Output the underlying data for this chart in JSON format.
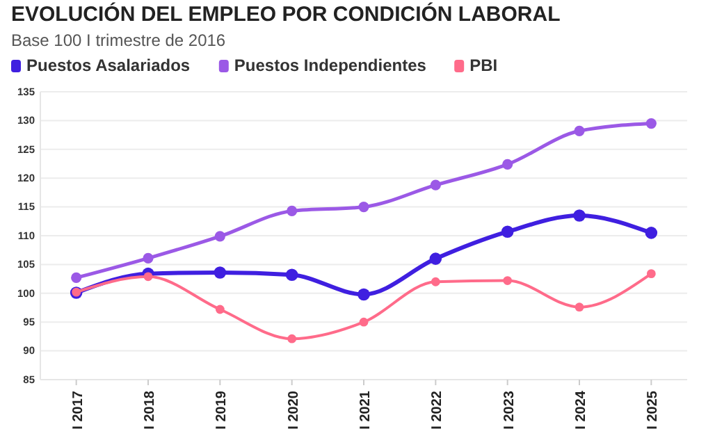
{
  "chart_data": {
    "type": "line",
    "title": "EVOLUCIÓN DEL EMPLEO POR CONDICIÓN LABORAL",
    "subtitle": "Base 100 I trimestre de 2016",
    "categories": [
      "I 2017",
      "I 2018",
      "I 2019",
      "I 2020",
      "I 2021",
      "I 2022",
      "I 2023",
      "I 2024",
      "I 2025"
    ],
    "series": [
      {
        "name": "Puestos Asalariados",
        "color": "#3f1fe0",
        "values": [
          100.1,
          103.4,
          103.6,
          103.2,
          99.8,
          106.0,
          110.7,
          113.5,
          110.5
        ]
      },
      {
        "name": "Puestos Independientes",
        "color": "#9b59e6",
        "values": [
          102.7,
          106.1,
          109.9,
          114.3,
          115.0,
          118.8,
          122.4,
          128.2,
          129.5
        ]
      },
      {
        "name": "PBI",
        "color": "#ff6b8a",
        "values": [
          100.2,
          102.9,
          97.2,
          92.1,
          95.0,
          102.0,
          102.2,
          97.6,
          103.4
        ]
      }
    ],
    "ylim": [
      85,
      135
    ],
    "yticks": [
      85,
      90,
      95,
      100,
      105,
      110,
      115,
      120,
      125,
      130,
      135
    ],
    "grid": "y",
    "legend": "top left",
    "marker": "circle",
    "line_style": "solid"
  }
}
